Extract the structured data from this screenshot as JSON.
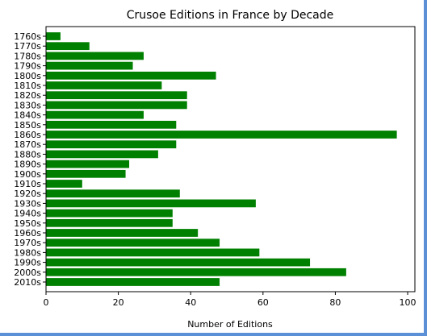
{
  "chart_data": {
    "type": "bar",
    "orientation": "horizontal",
    "title": "Crusoe Editions in France by Decade",
    "xlabel": "Number of Editions",
    "ylabel": "",
    "xlim": [
      0,
      102
    ],
    "x_ticks": [
      0,
      20,
      40,
      60,
      80,
      100
    ],
    "categories": [
      "1760s",
      "1770s",
      "1780s",
      "1790s",
      "1800s",
      "1810s",
      "1820s",
      "1830s",
      "1840s",
      "1850s",
      "1860s",
      "1870s",
      "1880s",
      "1890s",
      "1900s",
      "1910s",
      "1920s",
      "1930s",
      "1940s",
      "1950s",
      "1960s",
      "1970s",
      "1980s",
      "1990s",
      "2000s",
      "2010s"
    ],
    "values": [
      4,
      12,
      27,
      24,
      47,
      32,
      39,
      39,
      27,
      36,
      97,
      36,
      31,
      23,
      22,
      10,
      37,
      58,
      35,
      35,
      42,
      48,
      59,
      73,
      83,
      48
    ],
    "bar_color": "#008000",
    "grid": false,
    "legend": "none"
  },
  "frame": {
    "border_color": "#5b8fd6"
  }
}
